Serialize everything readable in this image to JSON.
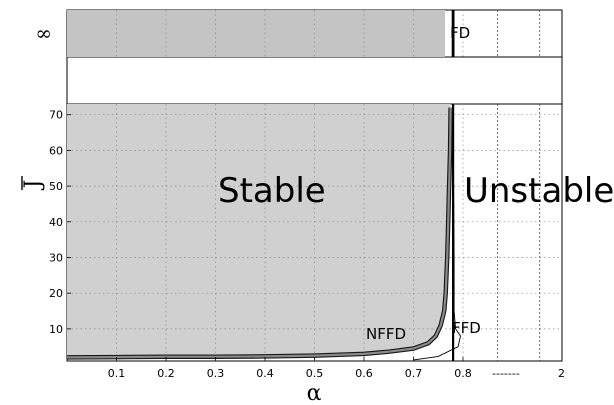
{
  "chart_data": {
    "type": "area",
    "title": "",
    "xlabel": "α",
    "ylabel": "J",
    "xlim": [
      0,
      1.0
    ],
    "ylim": [
      1,
      73
    ],
    "x_ticks": [
      0.1,
      0.2,
      0.3,
      0.4,
      0.5,
      0.6,
      0.7,
      0.8
    ],
    "x_tick_labels": [
      "0.1",
      "0.2",
      "0.3",
      "0.4",
      "0.5",
      "0.6",
      "0.7",
      "0.8"
    ],
    "x_break_label": "-------",
    "x_end_label": "2",
    "y_ticks": [
      10,
      20,
      30,
      40,
      50,
      60,
      70
    ],
    "y_tick_labels": [
      "10",
      "20",
      "30",
      "40",
      "50",
      "60",
      "70"
    ],
    "y_infinity_label": "∞",
    "grid": true,
    "region_labels": {
      "stable": "Stable",
      "unstable": "Unstable"
    },
    "curve_labels": {
      "nffd": "NFFD",
      "ffd": "FFD",
      "fd": "FD"
    },
    "series": [
      {
        "name": "NFFD",
        "x": [
          0.0,
          0.1,
          0.2,
          0.3,
          0.4,
          0.5,
          0.6,
          0.65,
          0.7,
          0.73,
          0.745,
          0.755,
          0.762,
          0.765,
          0.768,
          0.77,
          0.772,
          0.774,
          0.775
        ],
        "y": [
          2.0,
          2.1,
          2.2,
          2.2,
          2.3,
          2.5,
          3.0,
          3.6,
          4.5,
          6.0,
          8.0,
          11.0,
          15.0,
          20.0,
          30.0,
          40.0,
          50.0,
          60.0,
          72.0
        ]
      },
      {
        "name": "FFD",
        "x": [
          0.7,
          0.75,
          0.79,
          0.795,
          0.785,
          0.782,
          0.782,
          0.781,
          0.78,
          0.78
        ],
        "y": [
          1.3,
          2.3,
          5.0,
          8.0,
          10.0,
          15.0,
          30.0,
          50.0,
          65.0,
          72.0
        ]
      },
      {
        "name": "FD",
        "x": [
          0.78,
          0.78
        ],
        "y": [
          1.0,
          73.0
        ]
      }
    ]
  }
}
